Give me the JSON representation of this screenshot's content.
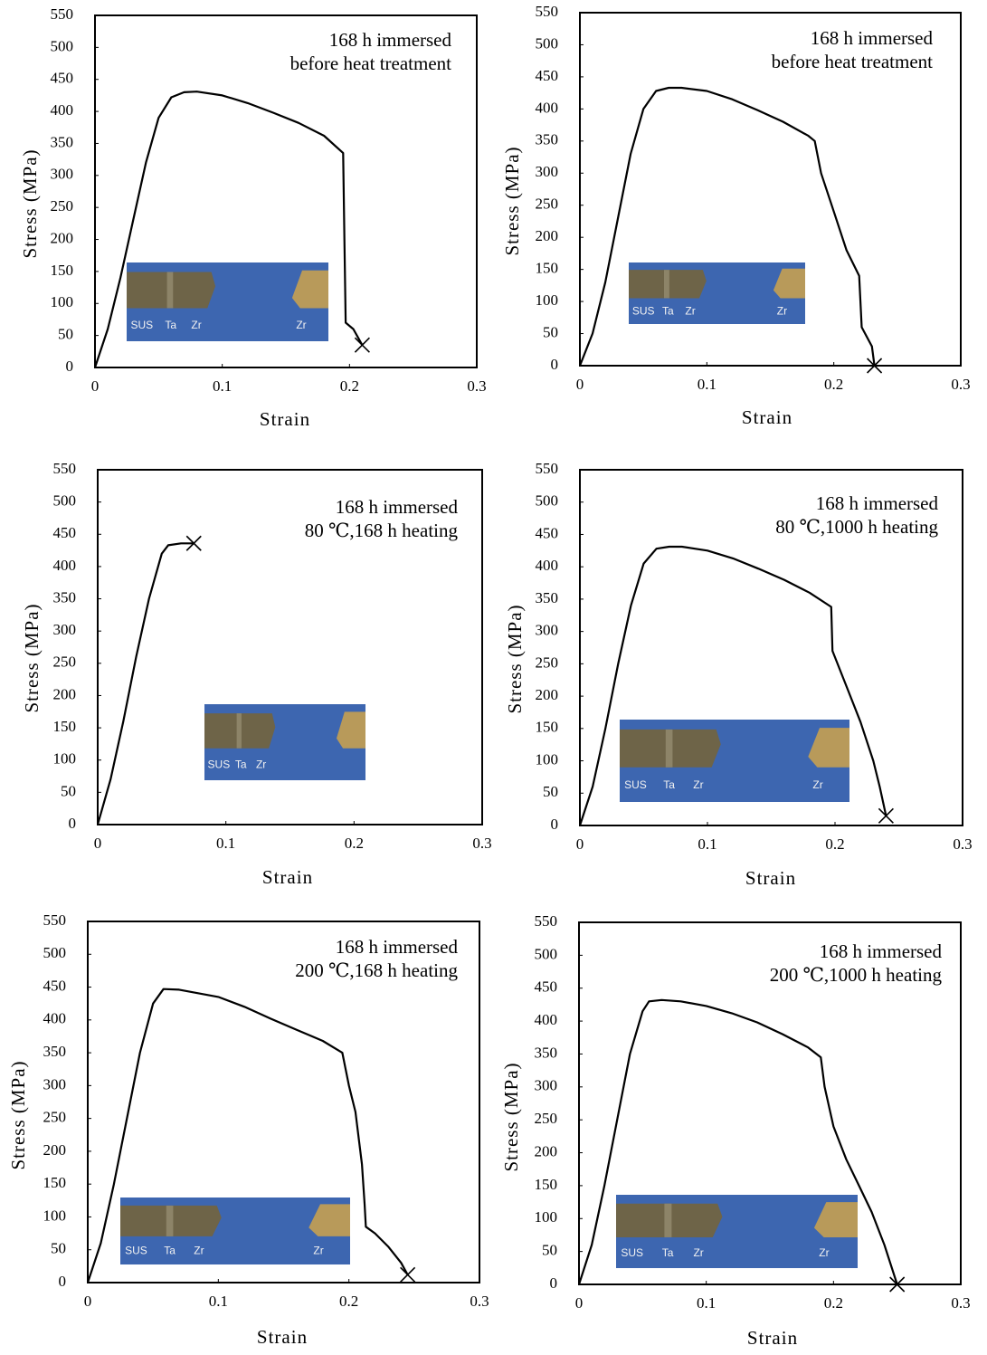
{
  "chart_data": [
    {
      "type": "line",
      "annotations": [
        "168 h immersed",
        "before heat treatment"
      ],
      "x_label": "Strain",
      "y_label": "Stress (MPa)",
      "x": [
        0,
        0.01,
        0.02,
        0.03,
        0.04,
        0.05,
        0.06,
        0.07,
        0.08,
        0.1,
        0.12,
        0.14,
        0.16,
        0.18,
        0.195,
        0.196,
        0.197,
        0.203,
        0.21
      ],
      "values": [
        0,
        60,
        140,
        230,
        320,
        390,
        422,
        430,
        431,
        425,
        413,
        398,
        382,
        362,
        335,
        200,
        70,
        60,
        35
      ],
      "color": "#000000",
      "xlim": [
        0,
        0.3
      ],
      "ylim": [
        0,
        550
      ],
      "xticks": [
        0,
        0.1,
        0.2,
        0.3
      ],
      "yticks": [
        0,
        50,
        100,
        150,
        200,
        250,
        300,
        350,
        400,
        450,
        500,
        550
      ],
      "inset_labels": [
        "SUS",
        "Ta",
        "Zr",
        "Zr"
      ]
    },
    {
      "type": "line",
      "annotations": [
        "168 h immersed",
        "before heat treatment"
      ],
      "x_label": "Strain",
      "y_label": "Stress (MPa)",
      "x": [
        0,
        0.01,
        0.02,
        0.03,
        0.04,
        0.05,
        0.06,
        0.07,
        0.08,
        0.1,
        0.12,
        0.14,
        0.16,
        0.18,
        0.185,
        0.19,
        0.2,
        0.21,
        0.22,
        0.222,
        0.23,
        0.232
      ],
      "values": [
        0,
        50,
        130,
        230,
        330,
        400,
        428,
        433,
        433,
        428,
        415,
        398,
        380,
        358,
        350,
        300,
        240,
        180,
        140,
        60,
        30,
        0
      ],
      "color": "#000000",
      "xlim": [
        0,
        0.3
      ],
      "ylim": [
        0,
        550
      ],
      "xticks": [
        0,
        0.1,
        0.2,
        0.3
      ],
      "yticks": [
        0,
        50,
        100,
        150,
        200,
        250,
        300,
        350,
        400,
        450,
        500,
        550
      ],
      "inset_labels": [
        "SUS",
        "Ta",
        "Zr",
        "Zr"
      ]
    },
    {
      "type": "line",
      "annotations": [
        "168 h immersed",
        "80 ℃,168 h heating"
      ],
      "x_label": "Strain",
      "y_label": "Stress (MPa)",
      "x": [
        0,
        0.01,
        0.02,
        0.03,
        0.04,
        0.05,
        0.055,
        0.065,
        0.075
      ],
      "values": [
        0,
        70,
        160,
        260,
        350,
        420,
        433,
        436,
        436
      ],
      "color": "#000000",
      "xlim": [
        0,
        0.3
      ],
      "ylim": [
        0,
        550
      ],
      "xticks": [
        0,
        0.1,
        0.2,
        0.3
      ],
      "yticks": [
        0,
        50,
        100,
        150,
        200,
        250,
        300,
        350,
        400,
        450,
        500,
        550
      ],
      "inset_labels": [
        "SUS",
        "Ta",
        "Zr"
      ]
    },
    {
      "type": "line",
      "annotations": [
        "168 h immersed",
        "80 ℃,1000 h heating"
      ],
      "x_label": "Strain",
      "y_label": "Stress (MPa)",
      "x": [
        0,
        0.01,
        0.02,
        0.03,
        0.04,
        0.05,
        0.06,
        0.07,
        0.08,
        0.1,
        0.12,
        0.14,
        0.16,
        0.18,
        0.197,
        0.198,
        0.21,
        0.22,
        0.23,
        0.235,
        0.24
      ],
      "values": [
        0,
        60,
        150,
        250,
        340,
        405,
        428,
        431,
        431,
        425,
        413,
        397,
        380,
        360,
        338,
        270,
        210,
        160,
        100,
        60,
        15
      ],
      "color": "#000000",
      "xlim": [
        0,
        0.3
      ],
      "ylim": [
        0,
        550
      ],
      "xticks": [
        0,
        0.1,
        0.2,
        0.3
      ],
      "yticks": [
        0,
        50,
        100,
        150,
        200,
        250,
        300,
        350,
        400,
        450,
        500,
        550
      ],
      "inset_labels": [
        "SUS",
        "Ta",
        "Zr",
        "Zr"
      ]
    },
    {
      "type": "line",
      "annotations": [
        "168 h immersed",
        "200 ℃,168 h heating"
      ],
      "x_label": "Strain",
      "y_label": "Stress (MPa)",
      "x": [
        0,
        0.01,
        0.02,
        0.03,
        0.04,
        0.05,
        0.058,
        0.07,
        0.1,
        0.12,
        0.14,
        0.16,
        0.18,
        0.195,
        0.2,
        0.205,
        0.21,
        0.212,
        0.213,
        0.22,
        0.23,
        0.24,
        0.245
      ],
      "values": [
        0,
        60,
        150,
        250,
        350,
        425,
        447,
        446,
        435,
        420,
        402,
        385,
        368,
        350,
        300,
        260,
        180,
        120,
        85,
        75,
        55,
        30,
        12
      ],
      "color": "#000000",
      "xlim": [
        0,
        0.3
      ],
      "ylim": [
        0,
        550
      ],
      "xticks": [
        0,
        0.1,
        0.2,
        0.3
      ],
      "yticks": [
        0,
        50,
        100,
        150,
        200,
        250,
        300,
        350,
        400,
        450,
        500,
        550
      ],
      "inset_labels": [
        "SUS",
        "Ta",
        "Zr",
        "Zr"
      ]
    },
    {
      "type": "line",
      "annotations": [
        "168 h immersed",
        "200 ℃,1000 h heating"
      ],
      "x_label": "Strain",
      "y_label": "Stress (MPa)",
      "x": [
        0,
        0.01,
        0.02,
        0.03,
        0.04,
        0.05,
        0.055,
        0.065,
        0.08,
        0.1,
        0.12,
        0.14,
        0.16,
        0.18,
        0.19,
        0.193,
        0.2,
        0.21,
        0.22,
        0.23,
        0.24,
        0.25
      ],
      "values": [
        0,
        60,
        150,
        250,
        350,
        415,
        430,
        432,
        430,
        423,
        412,
        398,
        380,
        360,
        345,
        300,
        240,
        190,
        150,
        110,
        60,
        0
      ],
      "color": "#000000",
      "xlim": [
        0,
        0.3
      ],
      "ylim": [
        0,
        550
      ],
      "xticks": [
        0,
        0.1,
        0.2,
        0.3
      ],
      "yticks": [
        0,
        50,
        100,
        150,
        200,
        250,
        300,
        350,
        400,
        450,
        500,
        550
      ],
      "inset_labels": [
        "SUS",
        "Ta",
        "Zr",
        "Zr"
      ]
    }
  ]
}
